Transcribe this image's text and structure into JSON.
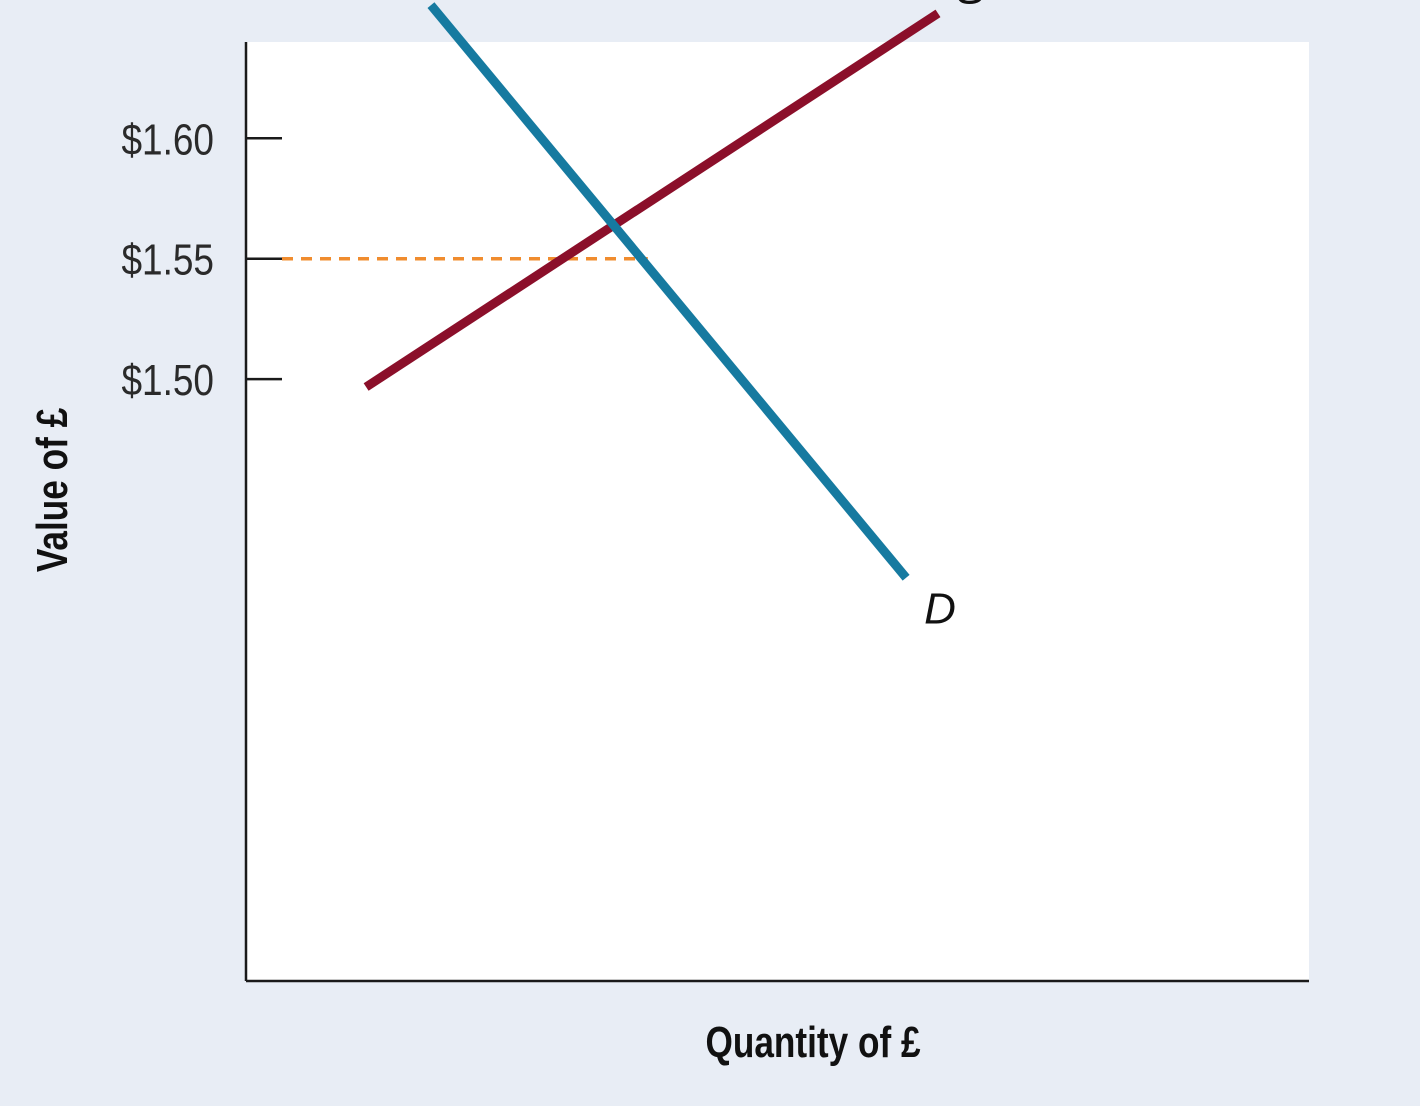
{
  "chart_data": {
    "type": "line",
    "xlabel": "Quantity of £",
    "ylabel": "Value of £",
    "y_ticks": [
      {
        "value": 1.6,
        "label": "$1.60"
      },
      {
        "value": 1.55,
        "label": "$1.55"
      },
      {
        "value": 1.5,
        "label": "$1.50"
      }
    ],
    "x_ticks": [],
    "ylim": [
      1.25,
      1.64
    ],
    "xlim": [
      0,
      1
    ],
    "grid": false,
    "series": [
      {
        "name": "S",
        "color": "#8b0f2a",
        "points": [
          [
            0.113,
            1.4967
          ],
          [
            0.651,
            1.6519
          ]
        ]
      },
      {
        "name": "D",
        "color": "#167aa0",
        "points": [
          [
            0.174,
            1.6553
          ],
          [
            0.621,
            1.4175
          ]
        ]
      }
    ],
    "equilibrium": {
      "x": 0.378,
      "y": 1.55,
      "color": "#f08c2e"
    }
  }
}
